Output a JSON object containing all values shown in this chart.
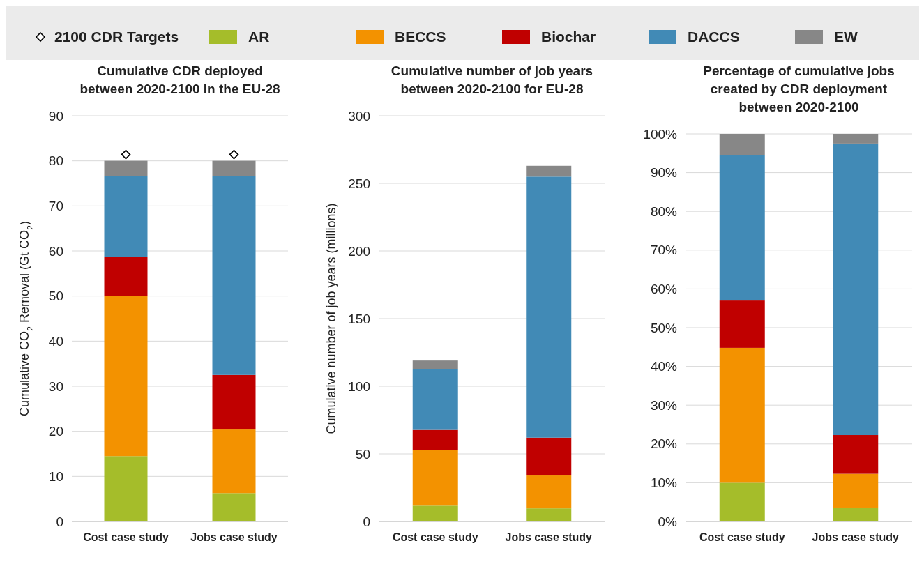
{
  "chart_data": [
    {
      "type": "bar",
      "stacked": true,
      "title": "Cumulative CDR deployed between 2020-2100 in the EU-28",
      "ylabel": "Cumulative CO$_{2}$ Removal (Gt CO$_{2}$)",
      "categories": [
        "Cost case study",
        "Jobs case study"
      ],
      "ylim": [
        0,
        90
      ],
      "yticks": [
        0,
        10,
        20,
        30,
        40,
        50,
        60,
        70,
        80,
        90
      ],
      "grid": "y",
      "legend": "top",
      "series": [
        {
          "name": "2100 CDR Targets",
          "type": "scatter",
          "marker": "diamond",
          "color": "#000000",
          "x": [
            "Cost case study",
            "Jobs case study"
          ],
          "values": [
            81.4,
            81.4
          ]
        },
        {
          "name": "AR",
          "color": "#a5bd2a",
          "values": [
            14.5,
            6.3
          ]
        },
        {
          "name": "BECCS",
          "color": "#f39200",
          "values": [
            35.5,
            14.1
          ]
        },
        {
          "name": "Biochar",
          "color": "#c00000",
          "values": [
            8.7,
            12.1
          ]
        },
        {
          "name": "DACCS",
          "color": "#418ab6",
          "values": [
            18,
            44.2
          ]
        },
        {
          "name": "EW",
          "color": "#878787",
          "values": [
            3.3,
            3.3
          ]
        }
      ]
    },
    {
      "type": "bar",
      "stacked": true,
      "title": "Cumulative number of job years between 2020-2100 for EU-28",
      "ylabel": "Cumulative number of job years (millions)",
      "categories": [
        "Cost case study",
        "Jobs case study"
      ],
      "ylim": [
        0,
        300
      ],
      "yticks": [
        0,
        50,
        100,
        150,
        200,
        250,
        300
      ],
      "grid": "y",
      "legend": "top",
      "series": [
        {
          "name": "AR",
          "color": "#a5bd2a",
          "values": [
            11.7,
            9.7
          ]
        },
        {
          "name": "BECCS",
          "color": "#f39200",
          "values": [
            41.2,
            24.3
          ]
        },
        {
          "name": "Biochar",
          "color": "#c00000",
          "values": [
            14.8,
            28
          ]
        },
        {
          "name": "DACCS",
          "color": "#418ab6",
          "values": [
            44.7,
            193
          ]
        },
        {
          "name": "EW",
          "color": "#878787",
          "values": [
            6.6,
            8
          ]
        }
      ]
    },
    {
      "type": "bar",
      "stacked": true,
      "title": "Percentage of cumulative jobs created by CDR deployment between 2020-2100",
      "categories": [
        "Cost case study",
        "Jobs case study"
      ],
      "ylim": [
        0,
        100
      ],
      "yticks": [
        {
          "value": 0,
          "label": "0%"
        },
        {
          "value": 10,
          "label": "10%"
        },
        {
          "value": 20,
          "label": "20%"
        },
        {
          "value": 30,
          "label": "30%"
        },
        {
          "value": 40,
          "label": "40%"
        },
        {
          "value": 50,
          "label": "50%"
        },
        {
          "value": 60,
          "label": "60%"
        },
        {
          "value": 70,
          "label": "70%"
        },
        {
          "value": 80,
          "label": "80%"
        },
        {
          "value": 90,
          "label": "90%"
        },
        {
          "value": 100,
          "label": "100%"
        }
      ],
      "grid": "y",
      "legend": "top",
      "series": [
        {
          "name": "AR",
          "color": "#a5bd2a",
          "values": [
            10,
            3.6
          ]
        },
        {
          "name": "BECCS",
          "color": "#f39200",
          "values": [
            34.8,
            8.7
          ]
        },
        {
          "name": "Biochar",
          "color": "#c00000",
          "values": [
            12.2,
            10
          ]
        },
        {
          "name": "DACCS",
          "color": "#418ab6",
          "values": [
            37.5,
            75.2
          ]
        },
        {
          "name": "EW",
          "color": "#878787",
          "values": [
            5.5,
            2.5
          ]
        }
      ]
    }
  ]
}
